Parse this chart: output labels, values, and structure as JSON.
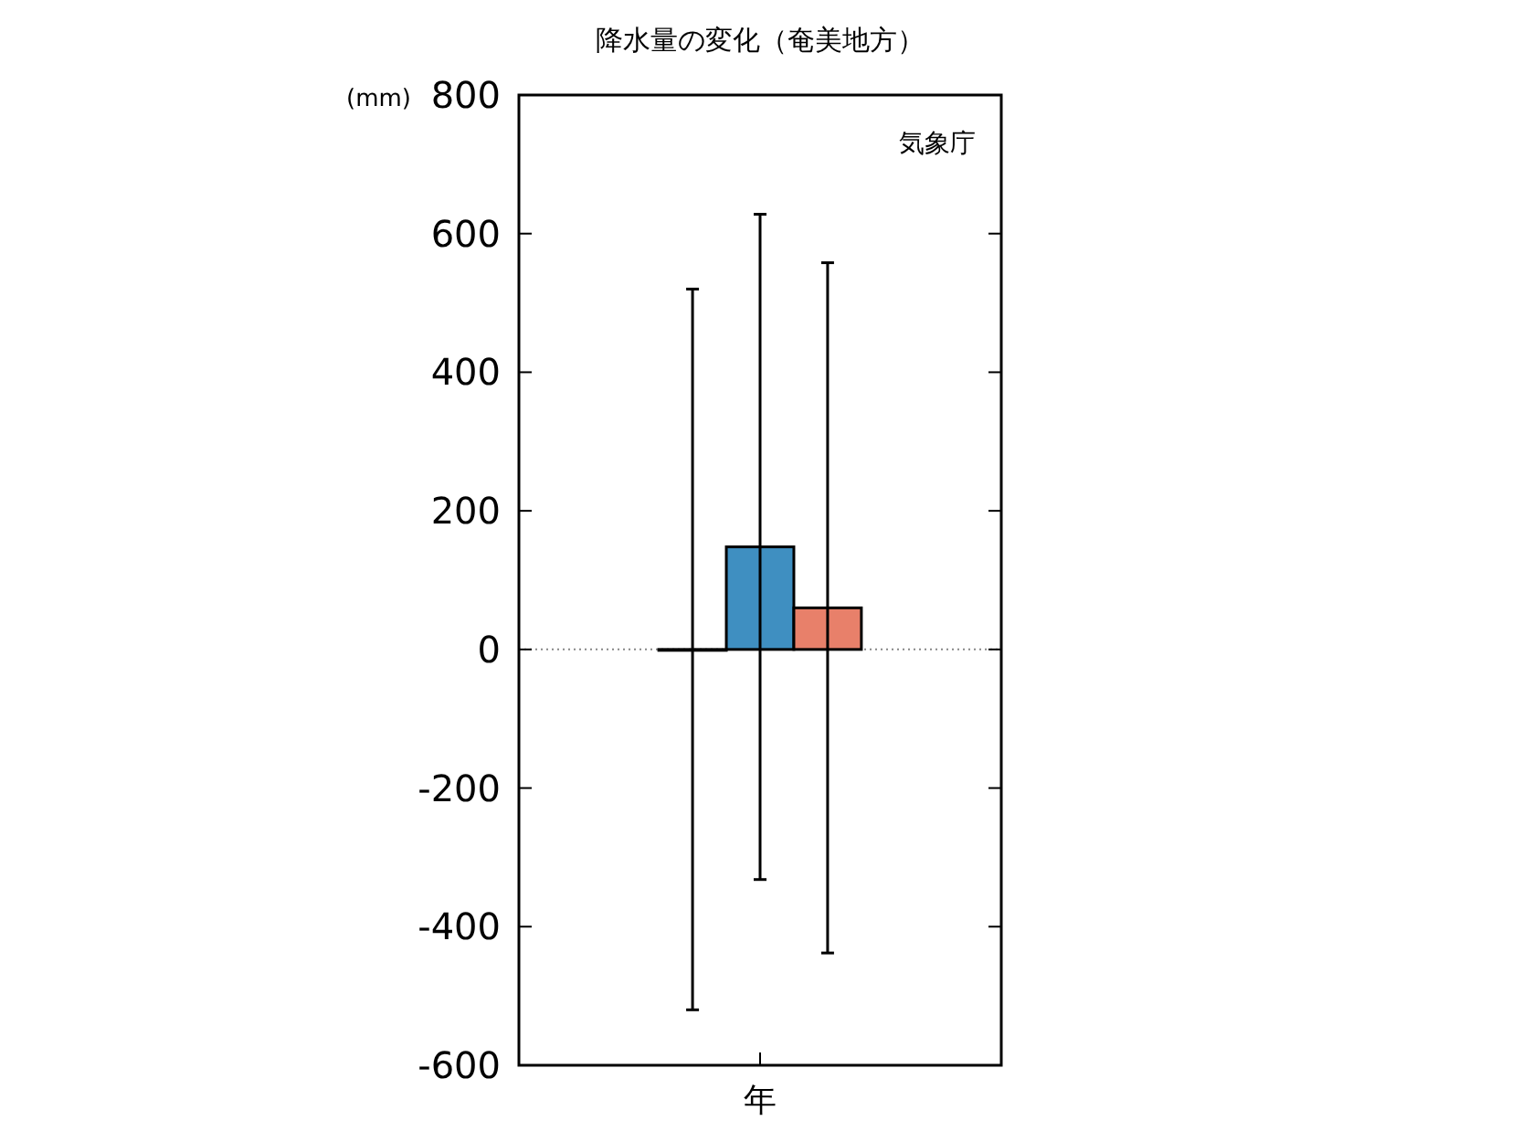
{
  "chart_data": {
    "type": "bar",
    "title": "降水量の変化（奄美地方）",
    "ylabel": "(mm)",
    "categories": [
      "年"
    ],
    "series": [
      {
        "color": "#ffffff",
        "values": [
          0
        ],
        "errors": [
          520
        ]
      },
      {
        "color": "#3f8fc1",
        "values": [
          148
        ],
        "errors": [
          480
        ]
      },
      {
        "color": "#e8806a",
        "values": [
          60
        ],
        "errors": [
          498
        ]
      }
    ],
    "ylim": [
      -600,
      800
    ],
    "yticks": [
      -600,
      -400,
      -200,
      0,
      200,
      400,
      600,
      800
    ],
    "ref_lines": [
      {
        "axis": "y",
        "value": 0,
        "color": "#888888",
        "line_style": "dotted"
      }
    ],
    "annotations": [
      "気象庁"
    ],
    "grid": false
  }
}
